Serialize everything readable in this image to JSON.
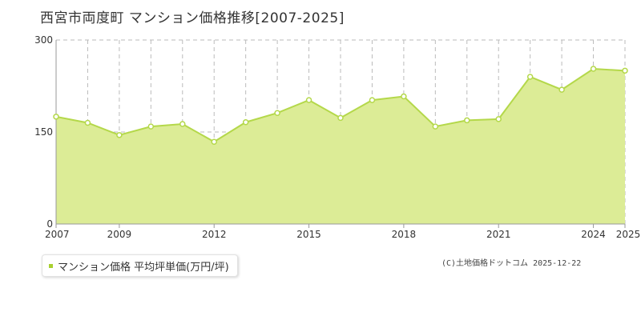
{
  "title": "西宮市両度町 マンション価格推移[2007-2025]",
  "legend": {
    "label": "マンション価格 平均坪単価(万円/坪)"
  },
  "credit": "(C)土地価格ドットコム 2025-12-22",
  "colors": {
    "area_fill": "#dcec96",
    "line": "#b4d84a",
    "point_stroke": "#b4d84a",
    "grid": "#bbbbbb"
  },
  "chart_data": {
    "type": "area",
    "x": [
      2007,
      2008,
      2009,
      2010,
      2011,
      2012,
      2013,
      2014,
      2015,
      2016,
      2017,
      2018,
      2019,
      2020,
      2021,
      2022,
      2023,
      2024,
      2025
    ],
    "series": [
      {
        "name": "マンション価格 平均坪単価(万円/坪)",
        "values": [
          175,
          165,
          145,
          159,
          163,
          134,
          166,
          181,
          202,
          173,
          202,
          208,
          159,
          169,
          171,
          240,
          219,
          253,
          250
        ]
      }
    ],
    "ylim": [
      0,
      300
    ],
    "y_ticks": [
      0,
      150,
      300
    ],
    "x_ticks": [
      2007,
      2009,
      2012,
      2015,
      2018,
      2021,
      2024,
      2025
    ],
    "grid": true
  }
}
